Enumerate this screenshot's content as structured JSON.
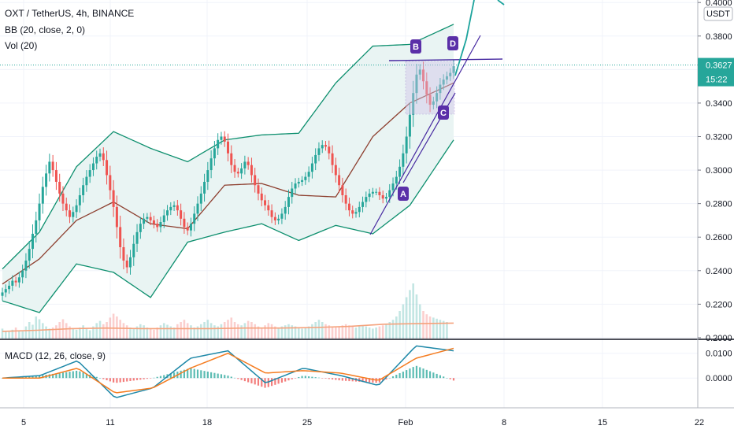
{
  "header": {
    "symbol_line": "OXT / TetherUS, 4h, BINANCE",
    "bb_line": "BB (20, close, 2, 0)",
    "vol_line": "Vol (20)",
    "macd_line": "MACD (12, 26, close, 9)"
  },
  "price_scale": {
    "currency": "USDT",
    "last_price": "0.3627",
    "countdown": "15:22"
  },
  "colors": {
    "up": "#26a69a",
    "down": "#ef5350",
    "bb_band": "#0d8f6e",
    "bb_basis": "#8d3f2f",
    "bb_fill": "#e9f4f3",
    "vol_ma": "#f5a27c",
    "macd": "#1e88a8",
    "signal": "#f57c20",
    "drawing": "#4527a0",
    "badge": "#5a2fa8",
    "last_price_line": "#26a69a"
  },
  "chart_data": [
    {
      "type": "candlestick",
      "title": "OXT / TetherUS, 4h, BINANCE",
      "x_ticks": [
        "5",
        "11",
        "18",
        "25",
        "Feb",
        "8",
        "15",
        "22"
      ],
      "y_ticks": [
        "0.4000",
        "0.3800",
        "0.3600",
        "0.3400",
        "0.3200",
        "0.3000",
        "0.2800",
        "0.2600",
        "0.2400",
        "0.2200",
        "0.2000"
      ],
      "ylim": [
        0.1995,
        0.4015
      ],
      "last_price": 0.3627,
      "series_close": [
        0.227,
        0.229,
        0.231,
        0.234,
        0.233,
        0.236,
        0.24,
        0.246,
        0.253,
        0.262,
        0.27,
        0.28,
        0.29,
        0.298,
        0.305,
        0.3,
        0.293,
        0.286,
        0.28,
        0.276,
        0.272,
        0.275,
        0.279,
        0.285,
        0.291,
        0.296,
        0.3,
        0.304,
        0.308,
        0.31,
        0.306,
        0.297,
        0.288,
        0.278,
        0.266,
        0.254,
        0.246,
        0.242,
        0.248,
        0.256,
        0.263,
        0.268,
        0.271,
        0.272,
        0.27,
        0.268,
        0.266,
        0.269,
        0.273,
        0.276,
        0.278,
        0.279,
        0.276,
        0.271,
        0.266,
        0.264,
        0.268,
        0.274,
        0.28,
        0.286,
        0.293,
        0.3,
        0.307,
        0.313,
        0.318,
        0.32,
        0.317,
        0.31,
        0.303,
        0.299,
        0.298,
        0.301,
        0.305,
        0.303,
        0.297,
        0.291,
        0.286,
        0.282,
        0.279,
        0.276,
        0.272,
        0.27,
        0.271,
        0.274,
        0.278,
        0.284,
        0.289,
        0.292,
        0.293,
        0.294,
        0.296,
        0.299,
        0.304,
        0.309,
        0.313,
        0.315,
        0.314,
        0.31,
        0.303,
        0.297,
        0.291,
        0.285,
        0.28,
        0.276,
        0.274,
        0.275,
        0.278,
        0.281,
        0.284,
        0.286,
        0.287,
        0.287,
        0.285,
        0.283,
        0.284,
        0.288,
        0.292,
        0.296,
        0.302,
        0.31,
        0.32,
        0.333,
        0.346,
        0.357,
        0.36,
        0.353,
        0.345,
        0.339,
        0.341,
        0.346,
        0.351,
        0.354,
        0.356,
        0.358,
        0.362
      ],
      "bb_upper_at_ticks": [
        0.241,
        0.263,
        0.302,
        0.323,
        0.313,
        0.305,
        0.318,
        0.321,
        0.322,
        0.352,
        0.374,
        0.375,
        0.387
      ],
      "bb_basis_at_ticks": [
        0.232,
        0.247,
        0.27,
        0.281,
        0.268,
        0.265,
        0.291,
        0.292,
        0.285,
        0.284,
        0.32,
        0.34,
        0.352
      ],
      "bb_lower_at_ticks": [
        0.222,
        0.215,
        0.244,
        0.239,
        0.224,
        0.257,
        0.263,
        0.268,
        0.258,
        0.267,
        0.262,
        0.279,
        0.318
      ]
    },
    {
      "type": "bar",
      "title": "Vol (20)",
      "note": "relative volume heights (0-1) shown as bars at the bottom of the price pane",
      "values": [
        0.18,
        0.14,
        0.12,
        0.16,
        0.2,
        0.15,
        0.13,
        0.22,
        0.3,
        0.25,
        0.4,
        0.35,
        0.28,
        0.22,
        0.18,
        0.2,
        0.24,
        0.3,
        0.35,
        0.28,
        0.22,
        0.18,
        0.16,
        0.2,
        0.24,
        0.18,
        0.15,
        0.22,
        0.28,
        0.32,
        0.26,
        0.3,
        0.38,
        0.45,
        0.4,
        0.34,
        0.28,
        0.24,
        0.2,
        0.18,
        0.22,
        0.26,
        0.24,
        0.2,
        0.18,
        0.16,
        0.2,
        0.24,
        0.28,
        0.25,
        0.22,
        0.2,
        0.26,
        0.3,
        0.34,
        0.28,
        0.24,
        0.2,
        0.22,
        0.26,
        0.3,
        0.34,
        0.28,
        0.24,
        0.22,
        0.26,
        0.3,
        0.34,
        0.38,
        0.3,
        0.26,
        0.24,
        0.28,
        0.32,
        0.3,
        0.26,
        0.22,
        0.2,
        0.24,
        0.28,
        0.26,
        0.22,
        0.2,
        0.22,
        0.24,
        0.26,
        0.24,
        0.22,
        0.2,
        0.18,
        0.2,
        0.22,
        0.26,
        0.3,
        0.34,
        0.3,
        0.26,
        0.24,
        0.22,
        0.2,
        0.22,
        0.24,
        0.26,
        0.24,
        0.22,
        0.2,
        0.22,
        0.24,
        0.22,
        0.2,
        0.18,
        0.2,
        0.22,
        0.24,
        0.26,
        0.3,
        0.34,
        0.4,
        0.5,
        0.62,
        0.75,
        0.88,
        1.0,
        0.8,
        0.62,
        0.5,
        0.44,
        0.4,
        0.38,
        0.36,
        0.34,
        0.32,
        0.3
      ],
      "ma_line": [
        0.13,
        0.15,
        0.18,
        0.19,
        0.18,
        0.18,
        0.18,
        0.19,
        0.19,
        0.2,
        0.22,
        0.26,
        0.27,
        0.28
      ]
    },
    {
      "type": "line",
      "title": "MACD (12, 26, close, 9)",
      "y_ticks": [
        "0.0100",
        "0.0000"
      ],
      "ylim": [
        -0.012,
        0.015
      ],
      "macd_at_ticks": [
        0.0,
        0.001,
        0.007,
        -0.008,
        -0.004,
        0.008,
        0.011,
        -0.002,
        0.004,
        0.001,
        -0.003,
        0.013,
        0.011
      ],
      "signal_at_ticks": [
        0.0,
        0.0,
        0.004,
        -0.006,
        -0.004,
        0.004,
        0.01,
        0.002,
        0.003,
        0.002,
        -0.001,
        0.008,
        0.012
      ]
    }
  ],
  "annotations": {
    "labels": [
      "A",
      "B",
      "C",
      "D"
    ]
  }
}
